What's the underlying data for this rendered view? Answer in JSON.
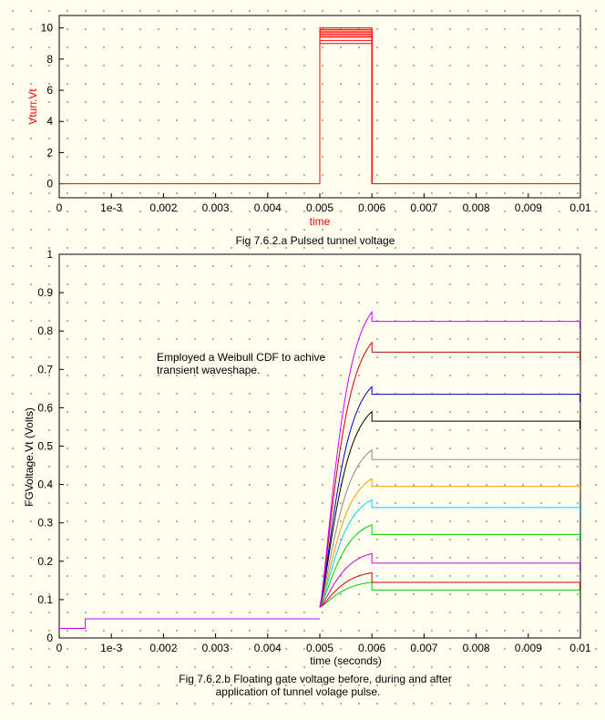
{
  "chart_data": [
    {
      "type": "line",
      "xlabel": "time",
      "ylabel": "Vtun.Vt",
      "caption": "Fig 7.6.2.a Pulsed tunnel voltage",
      "xlim": [
        0,
        0.01
      ],
      "ylim": [
        -0.9,
        10.8
      ],
      "x_ticks": [
        0,
        0.001,
        0.002,
        0.003,
        0.004,
        0.005,
        0.006,
        0.007,
        0.008,
        0.009,
        0.01
      ],
      "x_tick_labels": [
        "0",
        "1e-3",
        "0.002",
        "0.003",
        "0.004",
        "0.005",
        "0.006",
        "0.007",
        "0.008",
        "0.009",
        "0.01"
      ],
      "y_ticks": [
        0,
        2,
        4,
        6,
        8,
        10
      ],
      "y_tick_labels": [
        "0",
        "2",
        "4",
        "6",
        "8",
        "10"
      ],
      "label_color": "#ff0000",
      "line_color": "#ff0000",
      "pulse_start": 0.005,
      "pulse_end": 0.006,
      "pulse_levels": [
        9.0,
        9.2,
        9.4,
        9.5,
        9.6,
        9.7,
        9.8,
        9.9,
        10.0
      ],
      "grid": false
    },
    {
      "type": "line",
      "xlabel": "time (seconds)",
      "ylabel": "FGVoltage.Vt (Volts)",
      "caption_lines": [
        "Fig 7.6.2.b Floating gate voltage before, during and after",
        "application of tunnel volage pulse."
      ],
      "annotation_lines": [
        "Employed a Weibull CDF to achive",
        "transient waveshape."
      ],
      "xlim": [
        0,
        0.01
      ],
      "ylim": [
        0,
        1
      ],
      "x_ticks": [
        0,
        0.001,
        0.002,
        0.003,
        0.004,
        0.005,
        0.006,
        0.007,
        0.008,
        0.009,
        0.01
      ],
      "x_tick_labels": [
        "0",
        "1e-3",
        "0.002",
        "0.003",
        "0.004",
        "0.005",
        "0.006",
        "0.007",
        "0.008",
        "0.009",
        "0.01"
      ],
      "y_ticks": [
        0,
        0.1,
        0.2,
        0.3,
        0.4,
        0.5,
        0.6,
        0.7,
        0.8,
        0.9,
        1
      ],
      "y_tick_labels": [
        "0",
        "0.1",
        "0.2",
        "0.3",
        "0.4",
        "0.5",
        "0.6",
        "0.7",
        "0.8",
        "0.9",
        "1"
      ],
      "baseline": {
        "x": [
          0,
          0.0005,
          0.0005,
          0.005
        ],
        "y": [
          0.025,
          0.025,
          0.05,
          0.05
        ]
      },
      "transient_start": {
        "x": 0.005,
        "y": 0.08
      },
      "transient_end_x": 0.006,
      "final_x": 0.00999,
      "series": [
        {
          "color": "#00cc00",
          "peak": 0.145,
          "hold": 0.125
        },
        {
          "color": "#cc0000",
          "peak": 0.17,
          "hold": 0.145
        },
        {
          "color": "#cc00cc",
          "peak": 0.22,
          "hold": 0.195
        },
        {
          "color": "#00cc00",
          "peak": 0.295,
          "hold": 0.27
        },
        {
          "color": "#00ccff",
          "peak": 0.36,
          "hold": 0.34
        },
        {
          "color": "#ff9900",
          "peak": 0.415,
          "hold": 0.395
        },
        {
          "color": "#888888",
          "peak": 0.49,
          "hold": 0.465
        },
        {
          "color": "#000000",
          "peak": 0.59,
          "hold": 0.565
        },
        {
          "color": "#0000cc",
          "peak": 0.655,
          "hold": 0.635
        },
        {
          "color": "#cc0000",
          "peak": 0.77,
          "hold": 0.745
        },
        {
          "color": "#cc00ff",
          "peak": 0.85,
          "hold": 0.825
        }
      ],
      "baseline_color": "#cc00ff",
      "grid": false
    }
  ]
}
